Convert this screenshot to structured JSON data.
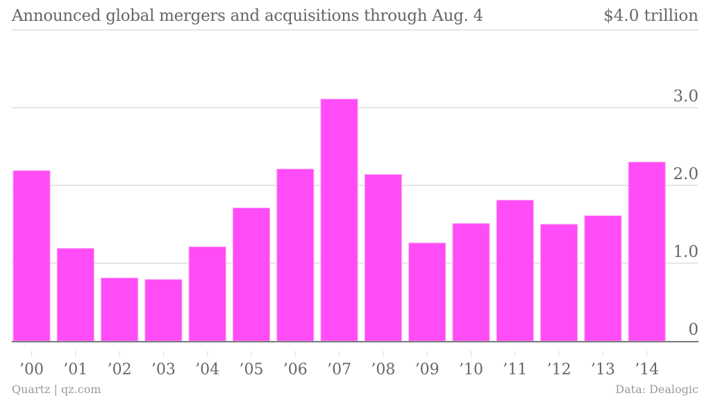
{
  "chart_data": {
    "type": "bar",
    "title": "Announced global mergers and acquisitions through Aug. 4",
    "unit_label": "$4.0 trillion",
    "xlabel": "",
    "ylabel": "",
    "categories": [
      "’00",
      "’01",
      "’02",
      "’03",
      "’04",
      "’05",
      "’06",
      "’07",
      "’08",
      "’09",
      "’10",
      "’11",
      "’12",
      "’13",
      "’14"
    ],
    "values": [
      2.19,
      1.19,
      0.81,
      0.79,
      1.21,
      1.71,
      2.21,
      3.11,
      2.14,
      1.26,
      1.51,
      1.81,
      1.5,
      1.61,
      2.3
    ],
    "ylim": [
      0,
      4.0
    ],
    "yticks": [
      0,
      1.0,
      2.0,
      3.0
    ],
    "ytick_labels": [
      "0",
      "1.0",
      "2.0",
      "3.0"
    ],
    "grid": true,
    "y_axis_side": "right",
    "bar_color": "#ff4cf6"
  },
  "footer": {
    "credit": "Quartz | qz.com",
    "source": "Data: Dealogic"
  }
}
